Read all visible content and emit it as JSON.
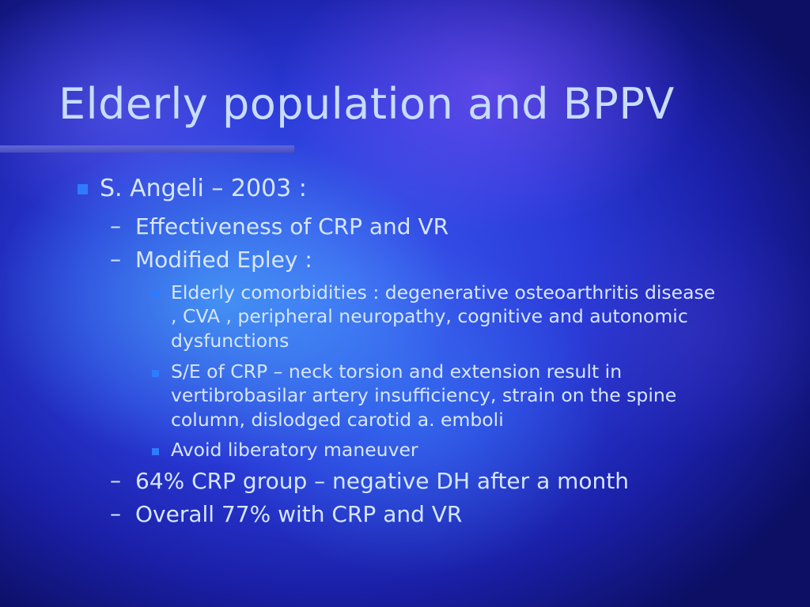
{
  "slide": {
    "title": "Elderly population and BPPV",
    "items": [
      {
        "level": 1,
        "text": "S. Angeli – 2003 :"
      },
      {
        "level": 2,
        "marker": "–",
        "text": "Effectiveness of CRP and VR"
      },
      {
        "level": 2,
        "marker": "–",
        "text": "Modified Epley :"
      },
      {
        "level": 3,
        "text": "Elderly comorbidities : degenerative osteoarthritis disease , CVA , peripheral neuropathy, cognitive and autonomic dysfunctions"
      },
      {
        "level": 3,
        "text": "S/E of CRP – neck torsion and extension result in vertibrobasilar artery insufficiency, strain on the spine column, dislodged carotid a. emboli"
      },
      {
        "level": 3,
        "text": "Avoid liberatory maneuver"
      },
      {
        "level": 2,
        "marker": "–",
        "text": "64% CRP group – negative DH after a month"
      },
      {
        "level": 2,
        "marker": "–",
        "text": "Overall 77% with CRP and VR"
      }
    ]
  },
  "colors": {
    "title": "#c8dcff",
    "text": "#d6e6ff",
    "bullet": "#2f7bff",
    "title_rule": "#5f67d8"
  }
}
